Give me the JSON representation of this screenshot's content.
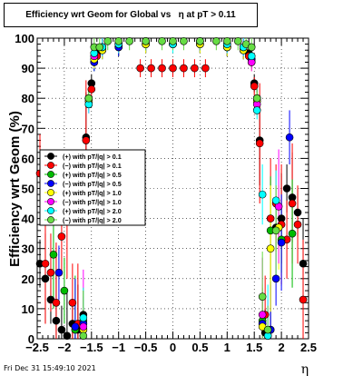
{
  "chart_data": {
    "type": "scatter",
    "title": "Efficiency wrt Geom for Global vs   η at pT > 0.11",
    "xlabel": "η",
    "ylabel": "Efficiency wrt Geom (%)",
    "xlim": [
      -2.5,
      2.5
    ],
    "ylim": [
      0,
      100
    ],
    "x_ticks": [
      "−2.5",
      "−2",
      "−1.5",
      "−1",
      "−0.5",
      "0",
      "0.5",
      "1",
      "1.5",
      "2",
      "2.5"
    ],
    "x_tick_values": [
      -2.5,
      -2,
      -1.5,
      -1,
      -0.5,
      0,
      0.5,
      1,
      1.5,
      2,
      2.5
    ],
    "y_ticks": [
      "0",
      "10",
      "20",
      "30",
      "40",
      "50",
      "60",
      "70",
      "80",
      "90",
      "100"
    ],
    "y_tick_values": [
      0,
      10,
      20,
      30,
      40,
      50,
      60,
      70,
      80,
      90,
      100
    ],
    "grid": true,
    "legend_position": "middle-left",
    "series": [
      {
        "name": "(+) with pT/|q| > 0.1",
        "color": "#000000",
        "x": [
          -2.45,
          -2.35,
          -2.25,
          -2.15,
          -2.05,
          -1.95,
          -1.85,
          -1.75,
          -1.65,
          -1.6,
          -1.5,
          -1.4,
          -1.3,
          -1.0,
          -0.5,
          0.0,
          0.5,
          1.0,
          1.3,
          1.4,
          1.5,
          1.6,
          1.7,
          1.8,
          1.9,
          2.0,
          2.1,
          2.2,
          2.3,
          2.4
        ],
        "y": [
          25,
          20,
          13,
          6,
          3,
          1,
          5,
          3,
          8,
          67,
          85,
          95,
          97,
          98,
          98,
          98,
          98,
          97,
          96,
          95,
          85,
          66,
          2,
          3,
          37,
          40,
          50,
          47,
          42,
          25
        ]
      },
      {
        "name": "(−) with pT/|q| > 0.1",
        "color": "#ff0000",
        "x": [
          -2.45,
          -2.35,
          -2.25,
          -2.15,
          -2.05,
          -1.95,
          -1.85,
          -1.75,
          -1.65,
          -1.6,
          -1.5,
          -1.4,
          -1.3,
          -1.0,
          -0.6,
          -0.4,
          -0.2,
          0.0,
          0.2,
          0.4,
          0.6,
          1.0,
          1.3,
          1.4,
          1.5,
          1.6,
          1.7,
          1.8,
          1.9,
          2.0,
          2.1,
          2.2,
          2.3,
          2.4
        ],
        "y": [
          55,
          25,
          22,
          12,
          34,
          40,
          12,
          5,
          3,
          66,
          83,
          94,
          97,
          97,
          90,
          90,
          90,
          90,
          90,
          90,
          90,
          97,
          96,
          94,
          84,
          65,
          8,
          40,
          45,
          38,
          33,
          45,
          38,
          13
        ]
      },
      {
        "name": "(+) with pT/|q| > 0.5",
        "color": "#00bb00",
        "x": [
          -2.2,
          -2.0,
          -1.8,
          -1.65,
          -1.55,
          -1.45,
          -1.3,
          -1.0,
          -0.5,
          0.0,
          0.5,
          1.0,
          1.3,
          1.45,
          1.55,
          1.65,
          1.8,
          2.0,
          2.2
        ],
        "y": [
          28,
          16,
          3,
          6,
          80,
          92,
          96,
          97,
          98,
          98,
          98,
          97,
          96,
          93,
          80,
          6,
          36,
          33,
          35
        ]
      },
      {
        "name": "(−) with pT/|q| > 0.5",
        "color": "#0000ff",
        "x": [
          -2.1,
          -1.8,
          -1.65,
          -1.55,
          -1.45,
          -1.3,
          -1.0,
          -0.5,
          0.0,
          0.5,
          1.0,
          1.3,
          1.45,
          1.55,
          1.65,
          1.8,
          1.9,
          2.0,
          2.15
        ],
        "y": [
          22,
          4,
          5,
          80,
          92,
          96,
          97,
          98,
          98,
          98,
          97,
          96,
          93,
          80,
          5,
          3,
          20,
          32,
          67
        ]
      },
      {
        "name": "(+) with pT/|q| > 1.0",
        "color": "#ffff00",
        "x": [
          -1.65,
          -1.55,
          -1.45,
          -1.3,
          -1.0,
          -0.5,
          0.0,
          0.5,
          1.0,
          1.3,
          1.45,
          1.55,
          1.65,
          1.8,
          1.95
        ],
        "y": [
          3,
          79,
          93,
          96,
          98,
          98,
          98,
          98,
          97,
          96,
          92,
          79,
          4,
          30,
          37
        ]
      },
      {
        "name": "(−) with pT/|q| > 1.0",
        "color": "#ff00ff",
        "x": [
          -1.65,
          -1.55,
          -1.45,
          -1.3,
          -1.0,
          -0.5,
          0.0,
          0.5,
          1.0,
          1.3,
          1.45,
          1.55,
          1.65,
          1.75,
          1.95
        ],
        "y": [
          4,
          78,
          94,
          97,
          98,
          99,
          98,
          99,
          98,
          97,
          92,
          78,
          8,
          1,
          44
        ]
      },
      {
        "name": "(+) with pT/|q| > 2.0",
        "color": "#00ffff",
        "x": [
          -1.65,
          -1.55,
          -1.45,
          -1.3,
          -1.0,
          -0.5,
          0.0,
          0.5,
          1.0,
          1.3,
          1.45,
          1.55,
          1.65,
          1.75,
          1.9
        ],
        "y": [
          7,
          78,
          95,
          97,
          98,
          99,
          98,
          99,
          98,
          97,
          94,
          76,
          48,
          1,
          46
        ]
      },
      {
        "name": "(−) with pT/|q| > 2.0",
        "color": "#66dd44",
        "x": [
          -1.65,
          -1.55,
          -1.45,
          -1.35,
          -1.2,
          -1.0,
          -0.8,
          -0.5,
          -0.2,
          0.0,
          0.2,
          0.5,
          0.8,
          1.0,
          1.2,
          1.35,
          1.45,
          1.55,
          1.65,
          1.75,
          1.9
        ],
        "y": [
          1,
          80,
          97,
          97,
          99,
          99,
          99,
          99,
          99,
          99,
          99,
          99,
          99,
          99,
          99,
          98,
          97,
          80,
          14,
          3,
          36
        ]
      }
    ]
  },
  "footer": {
    "timestamp": "Fri Dec 31 15:49:10 2021"
  }
}
